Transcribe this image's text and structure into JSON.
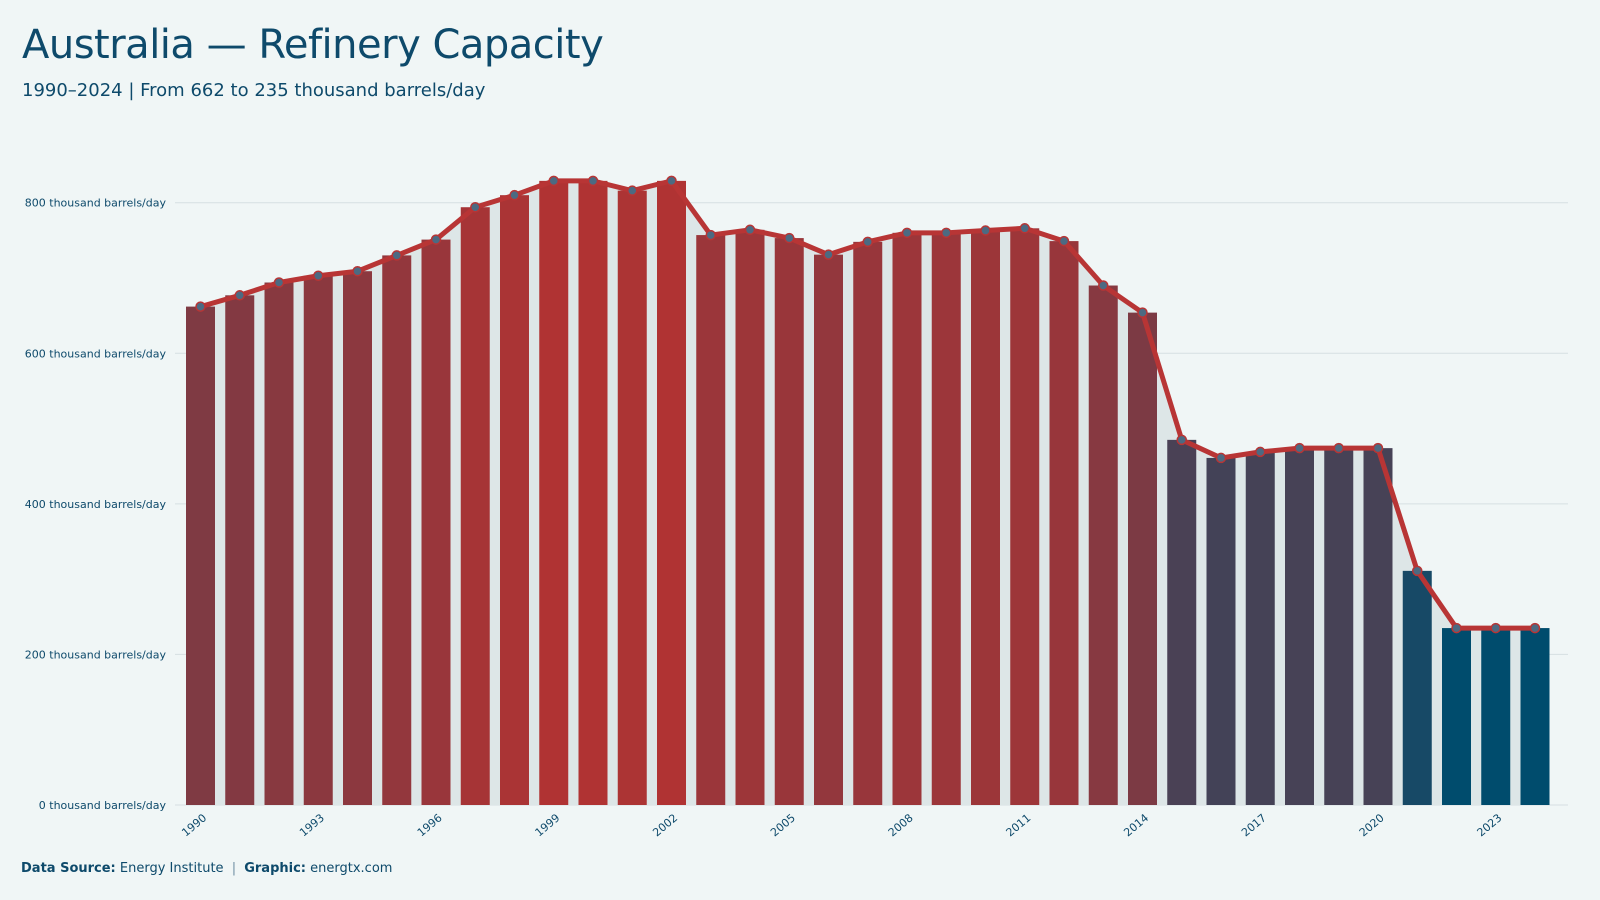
{
  "title": "Australia — Refinery Capacity",
  "subtitle": "1990–2024 | From 662 to 235 thousand barrels/day",
  "caption": {
    "source_label": "Data Source:",
    "source_value": "Energy Institute",
    "separator": "|",
    "graphic_label": "Graphic:",
    "graphic_value": "energtx.com"
  },
  "chart_data": {
    "type": "bar",
    "overlay": "line-with-markers",
    "categories": [
      "1990",
      "1991",
      "1992",
      "1993",
      "1994",
      "1995",
      "1996",
      "1997",
      "1998",
      "1999",
      "2000",
      "2001",
      "2002",
      "2003",
      "2004",
      "2005",
      "2006",
      "2007",
      "2008",
      "2009",
      "2010",
      "2011",
      "2012",
      "2013",
      "2014",
      "2015",
      "2016",
      "2017",
      "2018",
      "2019",
      "2020",
      "2021",
      "2022",
      "2023",
      "2024"
    ],
    "values": [
      662,
      677,
      694,
      703,
      709,
      730,
      751,
      794,
      810,
      829,
      829,
      816,
      829,
      757,
      764,
      753,
      731,
      748,
      760,
      760,
      763,
      766,
      749,
      690,
      654,
      485,
      461,
      469,
      474,
      474,
      474,
      311,
      235,
      235,
      235
    ],
    "x_tick_labels": [
      "1990",
      "1993",
      "1996",
      "1999",
      "2002",
      "2005",
      "2008",
      "2011",
      "2014",
      "2017",
      "2020",
      "2023"
    ],
    "y_ticks": [
      {
        "value": 0,
        "label": "0 thousand barrels/day"
      },
      {
        "value": 200,
        "label": "200 thousand barrels/day"
      },
      {
        "value": 400,
        "label": "400 thousand barrels/day"
      },
      {
        "value": 600,
        "label": "600 thousand barrels/day"
      },
      {
        "value": 800,
        "label": "800 thousand barrels/day"
      }
    ],
    "ylim": [
      0,
      870
    ],
    "grid": "horizontal",
    "colors": {
      "high": "#b03333",
      "low": "#004c6d",
      "line": "#b83535",
      "marker": "#4c6a82",
      "area": "#dde6e7",
      "grid": "#d6dfe2"
    }
  }
}
